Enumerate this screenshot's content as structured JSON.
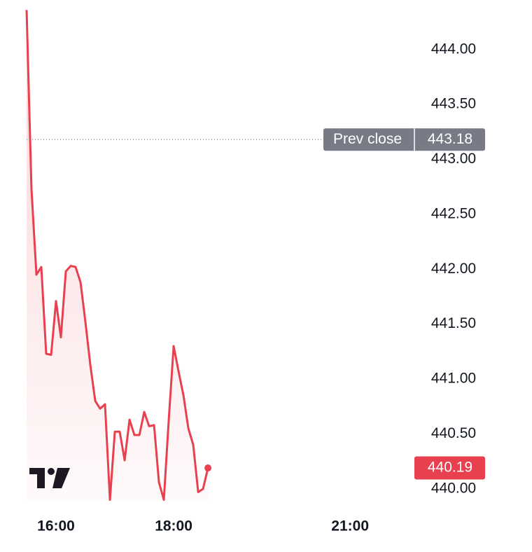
{
  "chart_data": {
    "type": "line",
    "x": [
      15.5,
      15.583,
      15.667,
      15.75,
      15.833,
      15.917,
      16,
      16.083,
      16.167,
      16.25,
      16.333,
      16.417,
      16.5,
      16.583,
      16.667,
      16.75,
      16.833,
      16.917,
      17,
      17.083,
      17.167,
      17.25,
      17.333,
      17.417,
      17.5,
      17.583,
      17.667,
      17.75,
      17.833,
      17.917,
      18,
      18.083,
      18.167,
      18.25,
      18.333,
      18.417,
      18.5,
      18.583
    ],
    "values": [
      444.36,
      442.73,
      441.95,
      442.02,
      441.23,
      441.22,
      441.71,
      441.38,
      441.98,
      442.03,
      442.02,
      441.88,
      441.52,
      441.13,
      440.8,
      440.73,
      440.77,
      439.9,
      440.52,
      440.52,
      440.26,
      440.63,
      440.49,
      440.49,
      440.7,
      440.57,
      440.58,
      440.06,
      439.9,
      440.63,
      441.3,
      441.07,
      440.85,
      440.55,
      440.4,
      439.97,
      440.0,
      440.19
    ],
    "color": "#e8404f",
    "xlim": [
      15.5,
      22.2
    ],
    "xticks": [
      {
        "value": 16,
        "label": "16:00"
      },
      {
        "value": 18,
        "label": "18:00"
      },
      {
        "value": 21,
        "label": "21:00"
      }
    ],
    "ylim": [
      439.9,
      444.4
    ],
    "yticks": [
      {
        "value": 440,
        "label": "440.00"
      },
      {
        "value": 440.5,
        "label": "440.50"
      },
      {
        "value": 441,
        "label": "441.00"
      },
      {
        "value": 441.5,
        "label": "441.50"
      },
      {
        "value": 442,
        "label": "442.00"
      },
      {
        "value": 442.5,
        "label": "442.50"
      },
      {
        "value": 443,
        "label": "443.00"
      },
      {
        "value": 443.5,
        "label": "443.50"
      },
      {
        "value": 444,
        "label": "444.00"
      }
    ],
    "grid": false,
    "prev_close": {
      "label": "Prev close",
      "value": 443.18
    },
    "prev_close_color": "#787b86"
  }
}
